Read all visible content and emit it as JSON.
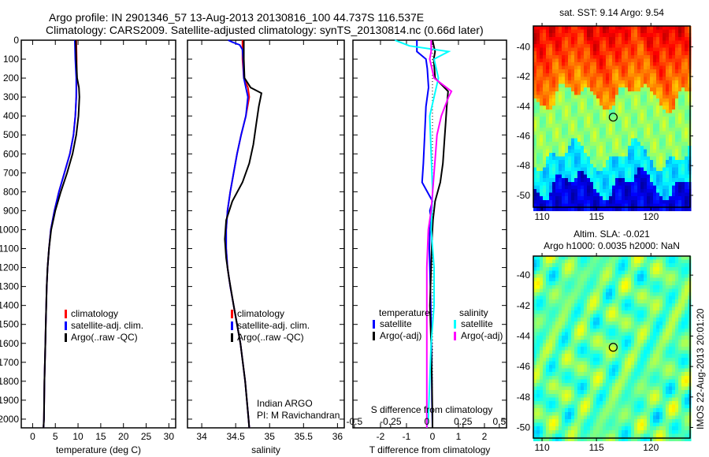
{
  "title": {
    "line1": "Argo profile: IN 2901346_57 13-Aug-2013 20130816_100 44.737S 116.537E",
    "line2": "Climatology: CARS2009. Satellite-adjusted climatology: synTS_20130814.nc (0.66d later)"
  },
  "side_label": "IMOS 22-Aug-2013 20:01:20",
  "depth_axis": {
    "ylim": [
      0,
      2046
    ],
    "ticks": [
      "0",
      "100",
      "200",
      "300",
      "400",
      "500",
      "600",
      "700",
      "800",
      "900",
      "1000",
      "1100",
      "1200",
      "1300",
      "1400",
      "1500",
      "1600",
      "1700",
      "1800",
      "1900",
      "2000"
    ]
  },
  "chart_data": [
    {
      "type": "line",
      "id": "temperature",
      "xlabel": "temperature (deg C)",
      "xlim": [
        -2.5,
        31.5
      ],
      "xticks": [
        "0",
        "5",
        "10",
        "15",
        "20",
        "25",
        "30"
      ],
      "legend": [
        "climatology",
        "satellite-adj. clim.",
        "Argo(..raw -QC)"
      ],
      "series": [
        {
          "name": "climatology",
          "color": "#ff0000",
          "depth": [
            0,
            100,
            200,
            300,
            400,
            500,
            600,
            700,
            800,
            900,
            1000,
            1100,
            1200,
            1300,
            1400,
            1500,
            1600,
            1800,
            2000,
            2046
          ],
          "values": [
            9.6,
            9.7,
            9.7,
            9.6,
            9.4,
            9.0,
            8.2,
            7.0,
            5.8,
            4.8,
            4.0,
            3.6,
            3.3,
            3.1,
            3.0,
            2.9,
            2.8,
            2.6,
            2.5,
            2.4
          ]
        },
        {
          "name": "satellite-adj. clim.",
          "color": "#0000ff",
          "depth": [
            0,
            100,
            200,
            300,
            400,
            500,
            600,
            700,
            800,
            900,
            1000,
            1100,
            1200,
            1300,
            1400,
            1500,
            1600,
            1800,
            2000,
            2046
          ],
          "values": [
            9.3,
            9.4,
            9.6,
            9.6,
            9.4,
            9.0,
            8.2,
            7.0,
            5.8,
            4.8,
            4.0,
            3.6,
            3.3,
            3.1,
            3.0,
            2.9,
            2.8,
            2.6,
            2.5,
            2.4
          ]
        },
        {
          "name": "Argo(..raw -QC)",
          "color": "#000000",
          "depth": [
            0,
            100,
            200,
            250,
            300,
            400,
            500,
            600,
            700,
            800,
            900,
            1000,
            1100,
            1200,
            1300,
            1400,
            1500,
            1600,
            1800,
            2000,
            2046
          ],
          "values": [
            9.5,
            9.6,
            9.8,
            10.2,
            10.3,
            10.1,
            9.6,
            8.8,
            7.6,
            6.2,
            5.0,
            4.1,
            3.6,
            3.3,
            3.1,
            3.0,
            2.9,
            2.8,
            2.6,
            2.5,
            2.4
          ]
        }
      ]
    },
    {
      "type": "line",
      "id": "salinity",
      "xlabel": "salinity",
      "xlim": [
        33.79,
        36.1
      ],
      "xticks": [
        "34",
        "34.5",
        "35",
        "35.5",
        "36"
      ],
      "legend": [
        "climatology",
        "satellite-adj. clim.",
        "Argo(..raw -QC)"
      ],
      "annotation": [
        "Indian ARGO",
        "PI: M Ravichandran"
      ],
      "series": [
        {
          "name": "climatology",
          "color": "#ff0000",
          "depth": [
            0,
            100,
            200,
            250,
            300,
            400,
            500,
            600,
            700,
            800,
            900,
            1000,
            1100,
            1200,
            1300,
            1400,
            1500,
            1600,
            1800,
            2000,
            2046
          ],
          "values": [
            34.6,
            34.6,
            34.62,
            34.68,
            34.7,
            34.65,
            34.58,
            34.52,
            34.47,
            34.42,
            34.38,
            34.36,
            34.36,
            34.38,
            34.42,
            34.47,
            34.52,
            34.57,
            34.64,
            34.69,
            34.7
          ]
        },
        {
          "name": "satellite-adj. clim.",
          "color": "#0000ff",
          "depth": [
            0,
            10,
            25,
            50,
            100,
            200,
            300,
            400,
            500,
            600,
            700,
            800,
            900,
            1000,
            1100,
            1200,
            1300,
            1400,
            1500,
            1600,
            1800,
            2000,
            2046
          ],
          "values": [
            34.39,
            34.45,
            34.56,
            34.6,
            34.61,
            34.62,
            34.68,
            34.65,
            34.58,
            34.52,
            34.47,
            34.42,
            34.38,
            34.36,
            34.36,
            34.38,
            34.42,
            34.47,
            34.52,
            34.57,
            34.64,
            34.69,
            34.7
          ]
        },
        {
          "name": "Argo(..raw -QC)",
          "color": "#000000",
          "depth": [
            0,
            100,
            200,
            250,
            280,
            350,
            450,
            550,
            650,
            750,
            850,
            950,
            1050,
            1150,
            1250,
            1400,
            1500,
            1600,
            1800,
            2000,
            2046
          ],
          "values": [
            34.62,
            34.62,
            34.63,
            34.72,
            34.88,
            34.84,
            34.8,
            34.76,
            34.7,
            34.6,
            34.45,
            34.36,
            34.34,
            34.36,
            34.4,
            34.47,
            34.52,
            34.57,
            34.64,
            34.69,
            34.7
          ]
        }
      ]
    },
    {
      "type": "line",
      "id": "difference",
      "xlabel": "T difference from climatology",
      "xlim": [
        -3.06,
        2.85
      ],
      "xticks": [
        "-2",
        "-1",
        "0",
        "1",
        "2"
      ],
      "s_axis": {
        "label": "S difference from climatology",
        "slim": [
          -0.51,
          0.55
        ],
        "ticks": [
          "-0.5",
          "-0.25",
          "0",
          "0.25",
          "0.5"
        ]
      },
      "legend": {
        "temperature_title": "temperature",
        "salinity_title": "salinity",
        "items": [
          "satellite",
          "Argo(-adj)",
          "satellite",
          "Argo(-adj)"
        ]
      },
      "series": [
        {
          "name": "T satellite",
          "axis": "T",
          "color": "#0000ff",
          "depth": [
            0,
            60,
            100,
            150,
            250,
            350,
            500,
            650,
            750,
            800,
            850,
            900,
            950,
            1000,
            1100,
            1300,
            1500,
            1700,
            1900,
            2046
          ],
          "values": [
            -0.6,
            -0.6,
            -0.25,
            -0.2,
            -0.15,
            -0.25,
            -0.3,
            -0.35,
            -0.4,
            -0.2,
            0.0,
            -0.1,
            -0.05,
            -0.1,
            -0.12,
            -0.08,
            -0.05,
            -0.03,
            -0.02,
            0
          ]
        },
        {
          "name": "T Argo(-adj)",
          "axis": "T",
          "color": "#000000",
          "depth": [
            0,
            60,
            100,
            200,
            270,
            350,
            450,
            550,
            650,
            750,
            850,
            950,
            1050,
            1200,
            1400,
            1600,
            1800,
            2000,
            2046
          ],
          "values": [
            0,
            0.1,
            0.05,
            0.1,
            0.6,
            0.55,
            0.5,
            0.45,
            0.4,
            0.3,
            0.1,
            0.02,
            -0.02,
            -0.05,
            -0.1,
            -0.05,
            -0.02,
            0,
            0
          ]
        },
        {
          "name": "S satellite",
          "axis": "S",
          "color": "#00ffff",
          "depth": [
            0,
            30,
            60,
            100,
            200,
            300,
            400,
            600,
            800,
            1000,
            1200,
            1400,
            1600,
            1800,
            2000,
            2046
          ],
          "values": [
            -0.22,
            -0.12,
            0.15,
            0.05,
            0.08,
            0.05,
            0.02,
            0.03,
            0.04,
            0.03,
            0.05,
            0.05,
            0.03,
            0.02,
            0.01,
            0
          ]
        },
        {
          "name": "S Argo(-adj)",
          "axis": "S",
          "color": "#ff00ff",
          "depth": [
            0,
            60,
            100,
            200,
            270,
            300,
            400,
            500,
            600,
            700,
            800,
            900,
            1000,
            1200,
            1400,
            1600,
            1800,
            2000,
            2046
          ],
          "values": [
            0.03,
            0.03,
            0.02,
            0.05,
            0.17,
            0.15,
            0.1,
            0.07,
            0.06,
            0.05,
            0.04,
            0.03,
            0.01,
            0,
            0,
            0,
            0,
            0,
            0
          ]
        }
      ]
    }
  ],
  "maps": [
    {
      "id": "sst-map",
      "title": [
        "sat. SST: 9.14 Argo: 9.54"
      ],
      "lon_ticks": [
        "110",
        "115",
        "120"
      ],
      "lat_ticks": [
        "-40",
        "-42",
        "-44",
        "-46",
        "-48",
        "-50"
      ],
      "lonlim": [
        109.2,
        123.6
      ],
      "latlim": [
        -38.6,
        -50.8
      ],
      "marker": {
        "lon": 116.537,
        "lat": -44.737
      }
    },
    {
      "id": "sla-map",
      "title": [
        "Altim. SLA: -0.021",
        "Argo h1000: 0.0035 h2000: NaN"
      ],
      "lon_ticks": [
        "110",
        "115",
        "120"
      ],
      "lat_ticks": [
        "-40",
        "-42",
        "-44",
        "-46",
        "-48",
        "-50"
      ],
      "lonlim": [
        109.2,
        123.6
      ],
      "latlim": [
        -38.75,
        -50.7
      ],
      "marker": {
        "lon": 116.537,
        "lat": -44.737
      }
    }
  ]
}
